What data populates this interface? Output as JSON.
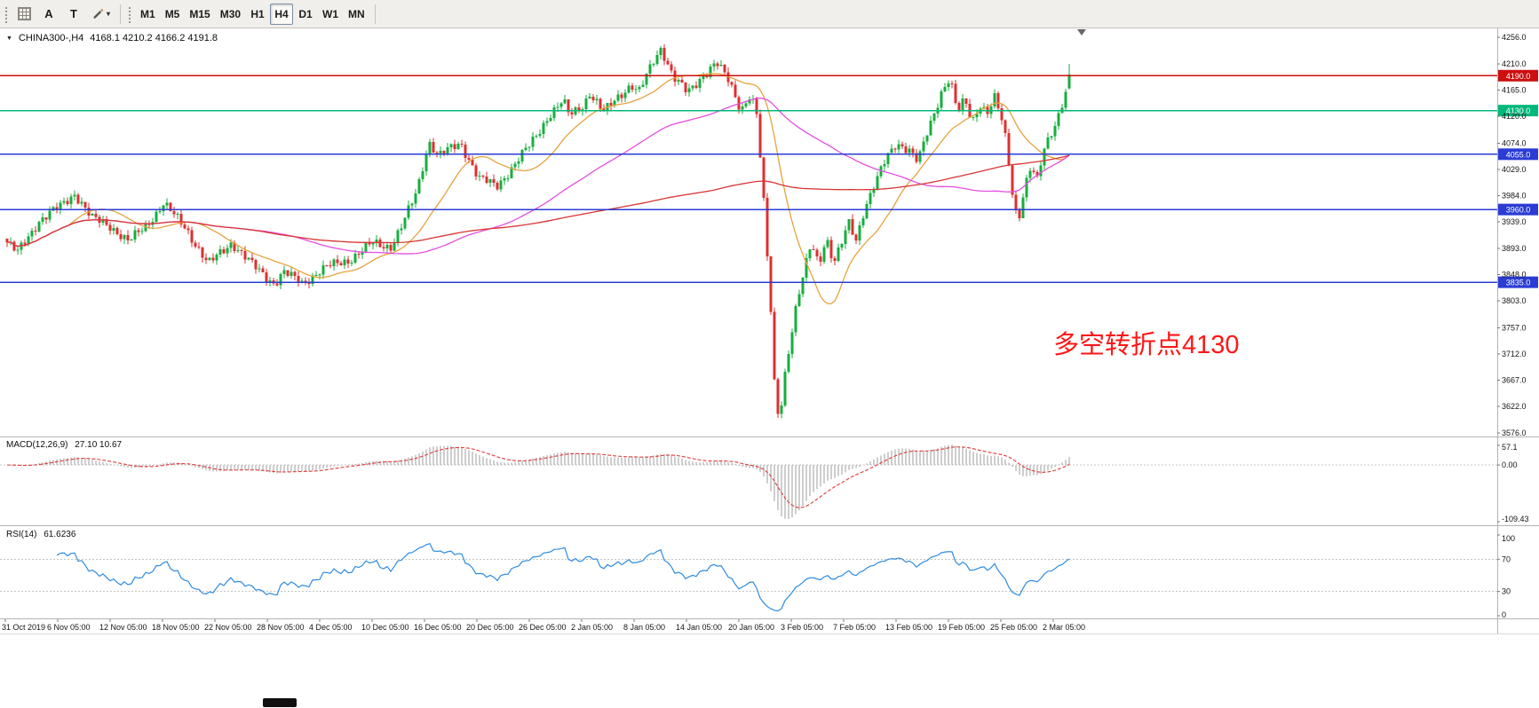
{
  "window": {
    "background": "#ffffff",
    "toolbar_background": "#f1efeb"
  },
  "icons": {
    "collapse_arrow": "▼",
    "dropdown_caret": "▾"
  },
  "toolbar": {
    "tool_buttons": [
      {
        "label": "A"
      },
      {
        "label": "T"
      }
    ],
    "timeframes": [
      {
        "label": "M1",
        "active": false
      },
      {
        "label": "M5",
        "active": false
      },
      {
        "label": "M15",
        "active": false
      },
      {
        "label": "M30",
        "active": false
      },
      {
        "label": "H1",
        "active": false
      },
      {
        "label": "H4",
        "active": true
      },
      {
        "label": "D1",
        "active": false
      },
      {
        "label": "W1",
        "active": false
      },
      {
        "label": "MN",
        "active": false
      }
    ]
  },
  "chart_header": {
    "symbol": "CHINA300-,H4",
    "ohlc": "4168.1 4210.2 4166.2 4191.8"
  },
  "annotation": {
    "text": "多空转折点4130",
    "color": "#ff1616"
  },
  "indicators": {
    "macd": {
      "label": "MACD(12,26,9)",
      "values": "27.10 10.67",
      "axis_labels": [
        "57.1",
        "0.00",
        "-109.43"
      ]
    },
    "rsi": {
      "label": "RSI(14)",
      "value": "61.6236",
      "axis_labels": [
        "100",
        "70",
        "30",
        "0"
      ]
    }
  },
  "chart_data": {
    "type": "candlestick",
    "symbol": "CHINA300-",
    "timeframe": "H4",
    "x_labels": [
      "31 Oct 2019",
      "6 Nov 05:00",
      "12 Nov 05:00",
      "18 Nov 05:00",
      "22 Nov 05:00",
      "28 Nov 05:00",
      "4 Dec 05:00",
      "10 Dec 05:00",
      "16 Dec 05:00",
      "20 Dec 05:00",
      "26 Dec 05:00",
      "2 Jan 05:00",
      "8 Jan 05:00",
      "14 Jan 05:00",
      "20 Jan 05:00",
      "3 Feb 05:00",
      "7 Feb 05:00",
      "13 Feb 05:00",
      "19 Feb 05:00",
      "25 Feb 05:00",
      "2 Mar 05:00"
    ],
    "main": {
      "ylim": [
        3576.0,
        4256.0
      ],
      "y_ticks": [
        4256.0,
        4210.0,
        4165.0,
        4120.0,
        4074.0,
        4029.0,
        3984.0,
        3939.0,
        3893.0,
        3848.0,
        3803.0,
        3757.0,
        3712.0,
        3667.0,
        3622.0,
        3576.0
      ],
      "levels": [
        {
          "price": 4190.0,
          "label": "4190.0",
          "color": "#cc0f0f",
          "type": "resistance"
        },
        {
          "price": 4130.0,
          "label": "4130.0",
          "color": "#00b87a",
          "type": "pivot"
        },
        {
          "price": 4055.0,
          "label": "4055.0",
          "color": "#2a3cd4",
          "type": "support"
        },
        {
          "price": 3960.0,
          "label": "3960.0",
          "color": "#2a3cd4",
          "type": "support"
        },
        {
          "price": 3835.0,
          "label": "3835.0",
          "color": "#2a3cd4",
          "type": "support"
        }
      ],
      "last_candle": {
        "o": 4168.1,
        "h": 4210.2,
        "l": 4166.2,
        "c": 4191.8
      },
      "candle_count": 300,
      "colors": {
        "up": "#18ad3f",
        "down": "#dc3030"
      },
      "moving_averages": [
        {
          "name": "ma-fast",
          "period": 18,
          "color": "#e6a33e"
        },
        {
          "name": "ma-mid",
          "period": 70,
          "color": "#e44fe0"
        },
        {
          "name": "ma-slow",
          "period": 200,
          "color": "#d93434"
        }
      ],
      "path": [
        [
          0.0,
          3910
        ],
        [
          0.013,
          3885
        ],
        [
          0.033,
          3940
        ],
        [
          0.055,
          3968
        ],
        [
          0.067,
          3988
        ],
        [
          0.083,
          3945
        ],
        [
          0.1,
          3932
        ],
        [
          0.117,
          3905
        ],
        [
          0.133,
          3930
        ],
        [
          0.15,
          3970
        ],
        [
          0.171,
          3928
        ],
        [
          0.192,
          3866
        ],
        [
          0.214,
          3903
        ],
        [
          0.233,
          3866
        ],
        [
          0.254,
          3833
        ],
        [
          0.263,
          3852
        ],
        [
          0.28,
          3834
        ],
        [
          0.304,
          3862
        ],
        [
          0.325,
          3874
        ],
        [
          0.346,
          3902
        ],
        [
          0.363,
          3896
        ],
        [
          0.375,
          3936
        ],
        [
          0.388,
          3992
        ],
        [
          0.399,
          4078
        ],
        [
          0.408,
          4052
        ],
        [
          0.421,
          4066
        ],
        [
          0.429,
          4074
        ],
        [
          0.446,
          4014
        ],
        [
          0.463,
          4000
        ],
        [
          0.479,
          4036
        ],
        [
          0.496,
          4076
        ],
        [
          0.511,
          4120
        ],
        [
          0.525,
          4146
        ],
        [
          0.531,
          4122
        ],
        [
          0.544,
          4140
        ],
        [
          0.55,
          4160
        ],
        [
          0.563,
          4126
        ],
        [
          0.575,
          4152
        ],
        [
          0.589,
          4174
        ],
        [
          0.596,
          4160
        ],
        [
          0.61,
          4216
        ],
        [
          0.617,
          4238
        ],
        [
          0.629,
          4186
        ],
        [
          0.642,
          4160
        ],
        [
          0.654,
          4186
        ],
        [
          0.669,
          4212
        ],
        [
          0.681,
          4180
        ],
        [
          0.692,
          4132
        ],
        [
          0.701,
          4158
        ],
        [
          0.707,
          4120
        ],
        [
          0.713,
          3980
        ],
        [
          0.72,
          3788
        ],
        [
          0.724,
          3640
        ],
        [
          0.728,
          3602
        ],
        [
          0.734,
          3688
        ],
        [
          0.744,
          3792
        ],
        [
          0.752,
          3858
        ],
        [
          0.758,
          3906
        ],
        [
          0.765,
          3868
        ],
        [
          0.772,
          3912
        ],
        [
          0.779,
          3864
        ],
        [
          0.786,
          3898
        ],
        [
          0.793,
          3940
        ],
        [
          0.8,
          3910
        ],
        [
          0.807,
          3956
        ],
        [
          0.814,
          3986
        ],
        [
          0.821,
          4016
        ],
        [
          0.829,
          4052
        ],
        [
          0.838,
          4076
        ],
        [
          0.85,
          4060
        ],
        [
          0.858,
          4040
        ],
        [
          0.865,
          4084
        ],
        [
          0.873,
          4126
        ],
        [
          0.881,
          4166
        ],
        [
          0.888,
          4184
        ],
        [
          0.895,
          4126
        ],
        [
          0.902,
          4150
        ],
        [
          0.909,
          4112
        ],
        [
          0.916,
          4142
        ],
        [
          0.923,
          4124
        ],
        [
          0.93,
          4150
        ],
        [
          0.936,
          4120
        ],
        [
          0.941,
          4076
        ],
        [
          0.947,
          3986
        ],
        [
          0.952,
          3940
        ],
        [
          0.958,
          3996
        ],
        [
          0.964,
          4032
        ],
        [
          0.97,
          4008
        ],
        [
          0.976,
          4062
        ],
        [
          0.982,
          4090
        ],
        [
          0.988,
          4112
        ],
        [
          0.992,
          4136
        ],
        [
          0.996,
          4152
        ],
        [
          1.0,
          4205
        ]
      ]
    },
    "macd": {
      "params": [
        12,
        26,
        9
      ],
      "histogram_color": "#9d9d9d",
      "signal_color": "#e03a3a"
    },
    "rsi": {
      "period": 14,
      "color": "#2f8be0",
      "levels": [
        70,
        30
      ]
    }
  }
}
